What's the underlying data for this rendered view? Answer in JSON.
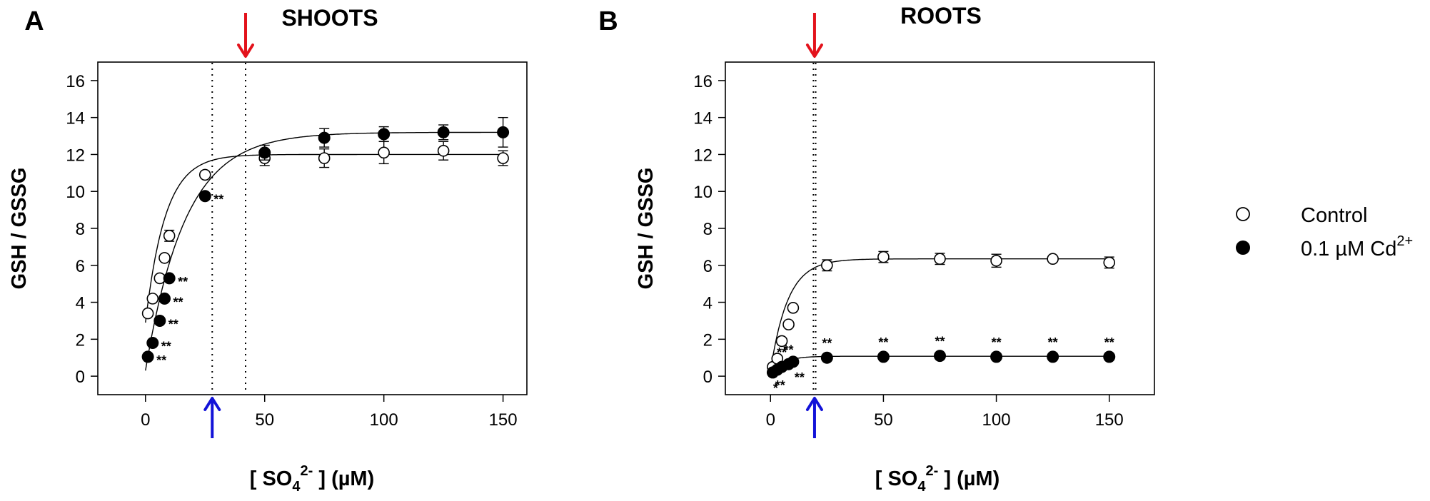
{
  "chart_data": [
    {
      "type": "scatter",
      "panel_letter": "A",
      "title": "SHOOTS",
      "ylabel": "GSH / GSSG",
      "xlabel_parts": {
        "pre": "[ SO",
        "sub": "4",
        "sup": "2-",
        "post": " ] (µM)"
      },
      "xlim": [
        -20,
        160
      ],
      "ylim": [
        -1,
        17
      ],
      "x_ticks": [
        0,
        50,
        100,
        150
      ],
      "y_ticks": [
        0,
        2,
        4,
        6,
        8,
        10,
        12,
        14,
        16
      ],
      "series": [
        {
          "name": "Control",
          "marker": "open-circle",
          "points": [
            {
              "x": 1,
              "y": 3.4,
              "err": 0.1
            },
            {
              "x": 3,
              "y": 4.2,
              "err": 0.1
            },
            {
              "x": 6,
              "y": 5.3,
              "err": 0.1
            },
            {
              "x": 8,
              "y": 6.4,
              "err": 0.2
            },
            {
              "x": 10,
              "y": 7.6,
              "err": 0.3
            },
            {
              "x": 25,
              "y": 10.9,
              "err": 0.1
            },
            {
              "x": 50,
              "y": 11.8,
              "err": 0.4
            },
            {
              "x": 75,
              "y": 11.8,
              "err": 0.5
            },
            {
              "x": 100,
              "y": 12.1,
              "err": 0.6
            },
            {
              "x": 125,
              "y": 12.2,
              "err": 0.5
            },
            {
              "x": 150,
              "y": 11.8,
              "err": 0.4
            }
          ],
          "fit": {
            "plateau": 12.0,
            "y0": 2.9,
            "k": 0.12
          }
        },
        {
          "name": "0.1 µM Cd2+",
          "marker": "filled-circle",
          "points": [
            {
              "x": 1,
              "y": 1.05,
              "err": 0.1,
              "sig": "**"
            },
            {
              "x": 3,
              "y": 1.8,
              "err": 0.1,
              "sig": "**"
            },
            {
              "x": 6,
              "y": 3.0,
              "err": 0.1,
              "sig": "**"
            },
            {
              "x": 8,
              "y": 4.2,
              "err": 0.1,
              "sig": "**"
            },
            {
              "x": 10,
              "y": 5.3,
              "err": 0.1,
              "sig": "**"
            },
            {
              "x": 25,
              "y": 9.75,
              "err": 0.1,
              "sig": "**"
            },
            {
              "x": 50,
              "y": 12.1,
              "err": 0.4
            },
            {
              "x": 75,
              "y": 12.9,
              "err": 0.5
            },
            {
              "x": 100,
              "y": 13.1,
              "err": 0.4
            },
            {
              "x": 125,
              "y": 13.2,
              "err": 0.4
            },
            {
              "x": 150,
              "y": 13.2,
              "err": 0.8
            }
          ],
          "fit": {
            "plateau": 13.2,
            "y0": 0.3,
            "k": 0.06
          }
        }
      ],
      "vlines": [
        28,
        42
      ],
      "arrows": {
        "red_at_x": 42,
        "blue_at_x": 28
      }
    },
    {
      "type": "scatter",
      "panel_letter": "B",
      "title": "ROOTS",
      "ylabel": "GSH / GSSG",
      "xlabel_parts": {
        "pre": "[ SO",
        "sub": "4",
        "sup": "2-",
        "post": " ] (µM)"
      },
      "xlim": [
        -20,
        170
      ],
      "ylim": [
        -1,
        17
      ],
      "x_ticks": [
        0,
        50,
        100,
        150
      ],
      "y_ticks": [
        0,
        2,
        4,
        6,
        8,
        10,
        12,
        14,
        16
      ],
      "series": [
        {
          "name": "Control",
          "marker": "open-circle",
          "points": [
            {
              "x": 1,
              "y": 0.5,
              "err": 0.05
            },
            {
              "x": 3,
              "y": 0.95,
              "err": 0.05
            },
            {
              "x": 5,
              "y": 1.9,
              "err": 0.1
            },
            {
              "x": 8,
              "y": 2.8,
              "err": 0.1
            },
            {
              "x": 10,
              "y": 3.7,
              "err": 0.1
            },
            {
              "x": 25,
              "y": 6.0,
              "err": 0.3
            },
            {
              "x": 50,
              "y": 6.45,
              "err": 0.3
            },
            {
              "x": 75,
              "y": 6.35,
              "err": 0.3
            },
            {
              "x": 100,
              "y": 6.25,
              "err": 0.35
            },
            {
              "x": 125,
              "y": 6.35,
              "err": 0.2
            },
            {
              "x": 150,
              "y": 6.15,
              "err": 0.3
            }
          ],
          "fit": {
            "plateau": 6.35,
            "y0": 0.3,
            "k": 0.13
          }
        },
        {
          "name": "0.1 µM Cd2+",
          "marker": "filled-circle",
          "points": [
            {
              "x": 1,
              "y": 0.2,
              "err": 0.03,
              "sig": "*",
              "sig_pos": "below"
            },
            {
              "x": 3,
              "y": 0.35,
              "err": 0.03,
              "sig": "**",
              "sig_pos": "below"
            },
            {
              "x": 5,
              "y": 0.5,
              "err": 0.03,
              "sig": "**",
              "sig_pos": "above"
            },
            {
              "x": 8,
              "y": 0.65,
              "err": 0.03,
              "sig": "**",
              "sig_pos": "above"
            },
            {
              "x": 10,
              "y": 0.78,
              "err": 0.03,
              "sig": "**",
              "sig_pos": "right-below"
            },
            {
              "x": 25,
              "y": 1.0,
              "err": 0.05,
              "sig": "**",
              "sig_pos": "above"
            },
            {
              "x": 50,
              "y": 1.05,
              "err": 0.05,
              "sig": "**",
              "sig_pos": "above"
            },
            {
              "x": 75,
              "y": 1.1,
              "err": 0.05,
              "sig": "**",
              "sig_pos": "above"
            },
            {
              "x": 100,
              "y": 1.05,
              "err": 0.05,
              "sig": "**",
              "sig_pos": "above"
            },
            {
              "x": 125,
              "y": 1.05,
              "err": 0.05,
              "sig": "**",
              "sig_pos": "above"
            },
            {
              "x": 150,
              "y": 1.05,
              "err": 0.05,
              "sig": "**",
              "sig_pos": "above"
            }
          ],
          "fit": {
            "plateau": 1.08,
            "y0": 0.12,
            "k": 0.18
          }
        }
      ],
      "vlines": [
        19,
        20
      ],
      "arrows": {
        "red_at_x": 19.5,
        "blue_at_x": 19.5
      }
    }
  ],
  "legend": {
    "position": "right",
    "items": [
      {
        "label_main": "Control",
        "label_sup": "",
        "marker": "open-circle"
      },
      {
        "label_main": "0.1 µM Cd",
        "label_sup": "2+",
        "marker": "filled-circle"
      }
    ]
  },
  "colors": {
    "red_arrow": "#e3121b",
    "blue_arrow": "#1212d8",
    "ink": "#000000"
  }
}
